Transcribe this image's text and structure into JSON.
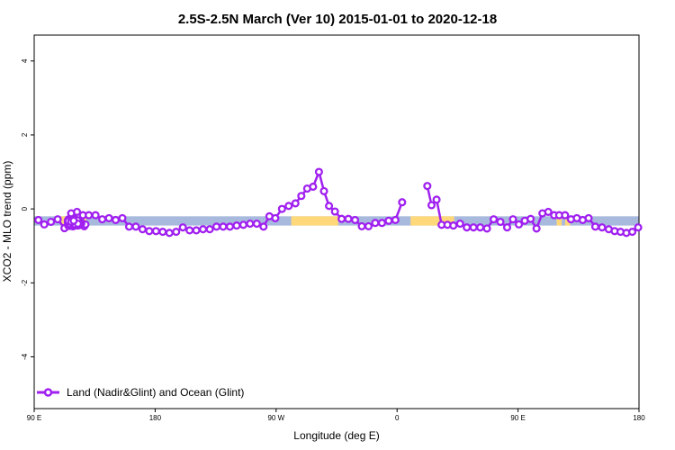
{
  "chart_data": {
    "type": "line",
    "title": "2.5S-2.5N March (Ver 10)   2015-01-01 to 2020-12-18",
    "xlabel": "Longitude (deg E)",
    "ylabel": "XCO2 - MLO trend (ppm)",
    "xlim": [
      90,
      450
    ],
    "ylim": [
      -5.4,
      4.7
    ],
    "x_ticks": [
      {
        "value": 90,
        "label": "90 E"
      },
      {
        "value": 162,
        "label": "180"
      },
      {
        "value": 234,
        "label": "90 W"
      },
      {
        "value": 306,
        "label": "0"
      },
      {
        "value": 378,
        "label": "90 E"
      },
      {
        "value": 450,
        "label": "180"
      }
    ],
    "y_ticks": [
      {
        "value": -4,
        "label": "-4"
      },
      {
        "value": -2,
        "label": "-2"
      },
      {
        "value": 0,
        "label": "0"
      },
      {
        "value": 2,
        "label": "2"
      },
      {
        "value": 4,
        "label": "4"
      }
    ],
    "grid": false,
    "legend_position": "bottom-left",
    "colors": {
      "series": "#a020f0",
      "ocean_band": "#a7b9dd",
      "land_band": "#ffd879",
      "marker_fill": "#ffffff"
    },
    "background_band": {
      "y_range": [
        -0.45,
        -0.2
      ],
      "land_segments": [
        [
          106,
          111
        ],
        [
          113,
          121
        ],
        [
          243,
          271
        ],
        [
          314,
          340
        ],
        [
          401,
          404
        ],
        [
          406,
          409
        ]
      ]
    },
    "series": [
      {
        "name": "Land (Nadir&Glint) and Ocean (Glint)",
        "segments": [
          {
            "x": [
              92.5,
              96,
              100,
              104,
              108,
              112,
              115.5,
              119,
              122.5,
              126.5,
              130.5,
              134.5,
              138.5,
              142.5,
              146.5,
              150.5,
              154.5,
              158.5,
              162.5,
              166.5,
              170.5,
              174.5,
              178.5,
              182.5,
              186.5,
              190.5,
              194.5,
              198.5,
              202.5,
              206.5,
              210.5,
              214.5,
              218.5,
              222.5,
              226.5,
              230,
              233.5,
              237.5,
              241.5,
              245.5,
              249,
              252.5,
              256,
              259.5,
              262.5,
              265.5,
              269,
              273,
              277,
              281,
              285,
              289,
              293,
              297,
              301,
              305,
              309
            ],
            "y": [
              -0.3,
              -0.42,
              -0.35,
              -0.28,
              -0.52,
              -0.12,
              -0.08,
              -0.17,
              -0.17,
              -0.17,
              -0.28,
              -0.25,
              -0.3,
              -0.25,
              -0.48,
              -0.48,
              -0.55,
              -0.6,
              -0.6,
              -0.62,
              -0.65,
              -0.62,
              -0.5,
              -0.58,
              -0.58,
              -0.55,
              -0.55,
              -0.48,
              -0.48,
              -0.48,
              -0.45,
              -0.43,
              -0.4,
              -0.4,
              -0.48,
              -0.2,
              -0.25,
              0.0,
              0.08,
              0.15,
              0.35,
              0.55,
              0.6,
              1.0,
              0.48,
              0.08,
              -0.07,
              -0.27,
              -0.27,
              -0.3,
              -0.47,
              -0.47,
              -0.38,
              -0.38,
              -0.32,
              -0.3,
              0.18
            ]
          },
          {
            "x": [
              110,
              111.5,
              114.5
            ],
            "y": [
              -0.32,
              -0.32,
              -0.38
            ]
          },
          {
            "x": [
              110.5,
              112,
              114,
              116
            ],
            "y": [
              -0.42,
              -0.35,
              -0.4,
              -0.45
            ]
          },
          {
            "x": [
              110.7,
              112.6,
              114.3,
              115.8,
              117.5,
              119.8
            ],
            "y": [
              -0.46,
              -0.39,
              -0.36,
              -0.41,
              -0.43,
              -0.47
            ]
          },
          {
            "x": [
              110.2,
              111.4,
              112.9,
              114.6,
              116.2,
              118.2,
              120.5
            ],
            "y": [
              -0.36,
              -0.43,
              -0.47,
              -0.44,
              -0.37,
              -0.38,
              -0.42
            ]
          },
          {
            "x": [
              110.5,
              112.1,
              113.8,
              115.5
            ],
            "y": [
              -0.28,
              -0.31,
              -0.29,
              -0.33
            ]
          },
          {
            "x": [
              112,
              113.5,
              115,
              116.5,
              118
            ],
            "y": [
              -0.33,
              -0.36,
              -0.37,
              -0.39,
              -0.4
            ]
          },
          {
            "x": [
              110.8,
              112.3,
              114,
              115.6
            ],
            "y": [
              -0.35,
              -0.32,
              -0.37,
              -0.36
            ]
          },
          {
            "x": [
              110,
              111.4,
              113.2
            ],
            "y": [
              -0.42,
              -0.36,
              -0.44
            ]
          },
          {
            "x": [
              111.2,
              113,
              114.8,
              116.4
            ],
            "y": [
              -0.46,
              -0.44,
              -0.41,
              -0.43
            ]
          },
          {
            "x": [
              112.5,
              114.2,
              116,
              117.4
            ],
            "y": [
              -0.34,
              -0.33,
              -0.36,
              -0.35
            ]
          },
          {
            "x": [
              111,
              112.5,
              114
            ],
            "y": [
              -0.28,
              -0.29,
              -0.27
            ]
          },
          {
            "x": [
              111.6,
              113,
              114.6,
              116.2
            ],
            "y": [
              -0.37,
              -0.4,
              -0.39,
              -0.42
            ]
          },
          {
            "x": [
              110.3,
              111.8,
              113.3
            ],
            "y": [
              -0.45,
              -0.43,
              -0.47
            ]
          },
          {
            "x": [
              111,
              112.5,
              113.9,
              115.1
            ],
            "y": [
              -0.31,
              -0.34,
              -0.3,
              -0.35
            ]
          },
          {
            "x": [
              112.1,
              113.7,
              115.3,
              116.8
            ],
            "y": [
              -0.38,
              -0.35,
              -0.41,
              -0.38
            ]
          },
          {
            "x": [
              110.6,
              112.2,
              113.8
            ],
            "y": [
              -0.39,
              -0.38,
              -0.4
            ]
          },
          {
            "x": [
              111.9,
              113.4,
              114.8,
              116.3
            ],
            "y": [
              -0.32,
              -0.36,
              -0.33,
              -0.38
            ]
          },
          {
            "x": [
              110.9,
              112.4,
              113.7
            ],
            "y": [
              -0.44,
              -0.4,
              -0.43
            ]
          },
          {
            "x": [
              112.7,
              114.3,
              115.9
            ],
            "y": [
              -0.3,
              -0.29,
              -0.31
            ]
          },
          {
            "x": [
              111.3,
              112.9,
              114.4,
              116
            ],
            "y": [
              -0.41,
              -0.38,
              -0.42,
              -0.4
            ]
          },
          {
            "x": [
              110.4,
              112,
              113.5
            ],
            "y": [
              -0.33,
              -0.35,
              -0.32
            ]
          },
          {
            "x": [
              324,
              326.5,
              329.5,
              332.5,
              336,
              339.5,
              343.5,
              347.5,
              351.5,
              355.5,
              359.5,
              363.5,
              367.5,
              371.5,
              375,
              378.5,
              382,
              385.5,
              389,
              392.5,
              396,
              399.5,
              402.5,
              406,
              409.5,
              413,
              416.5,
              420,
              424,
              428,
              432,
              435.5,
              439,
              442.5,
              446,
              449.5
            ],
            "y": [
              0.62,
              0.1,
              0.25,
              -0.43,
              -0.43,
              -0.45,
              -0.4,
              -0.5,
              -0.5,
              -0.5,
              -0.53,
              -0.28,
              -0.35,
              -0.5,
              -0.28,
              -0.42,
              -0.32,
              -0.27,
              -0.53,
              -0.12,
              -0.08,
              -0.17,
              -0.17,
              -0.17,
              -0.28,
              -0.25,
              -0.3,
              -0.25,
              -0.48,
              -0.5,
              -0.55,
              -0.6,
              -0.62,
              -0.65,
              -0.62,
              -0.5
            ]
          }
        ]
      }
    ]
  }
}
